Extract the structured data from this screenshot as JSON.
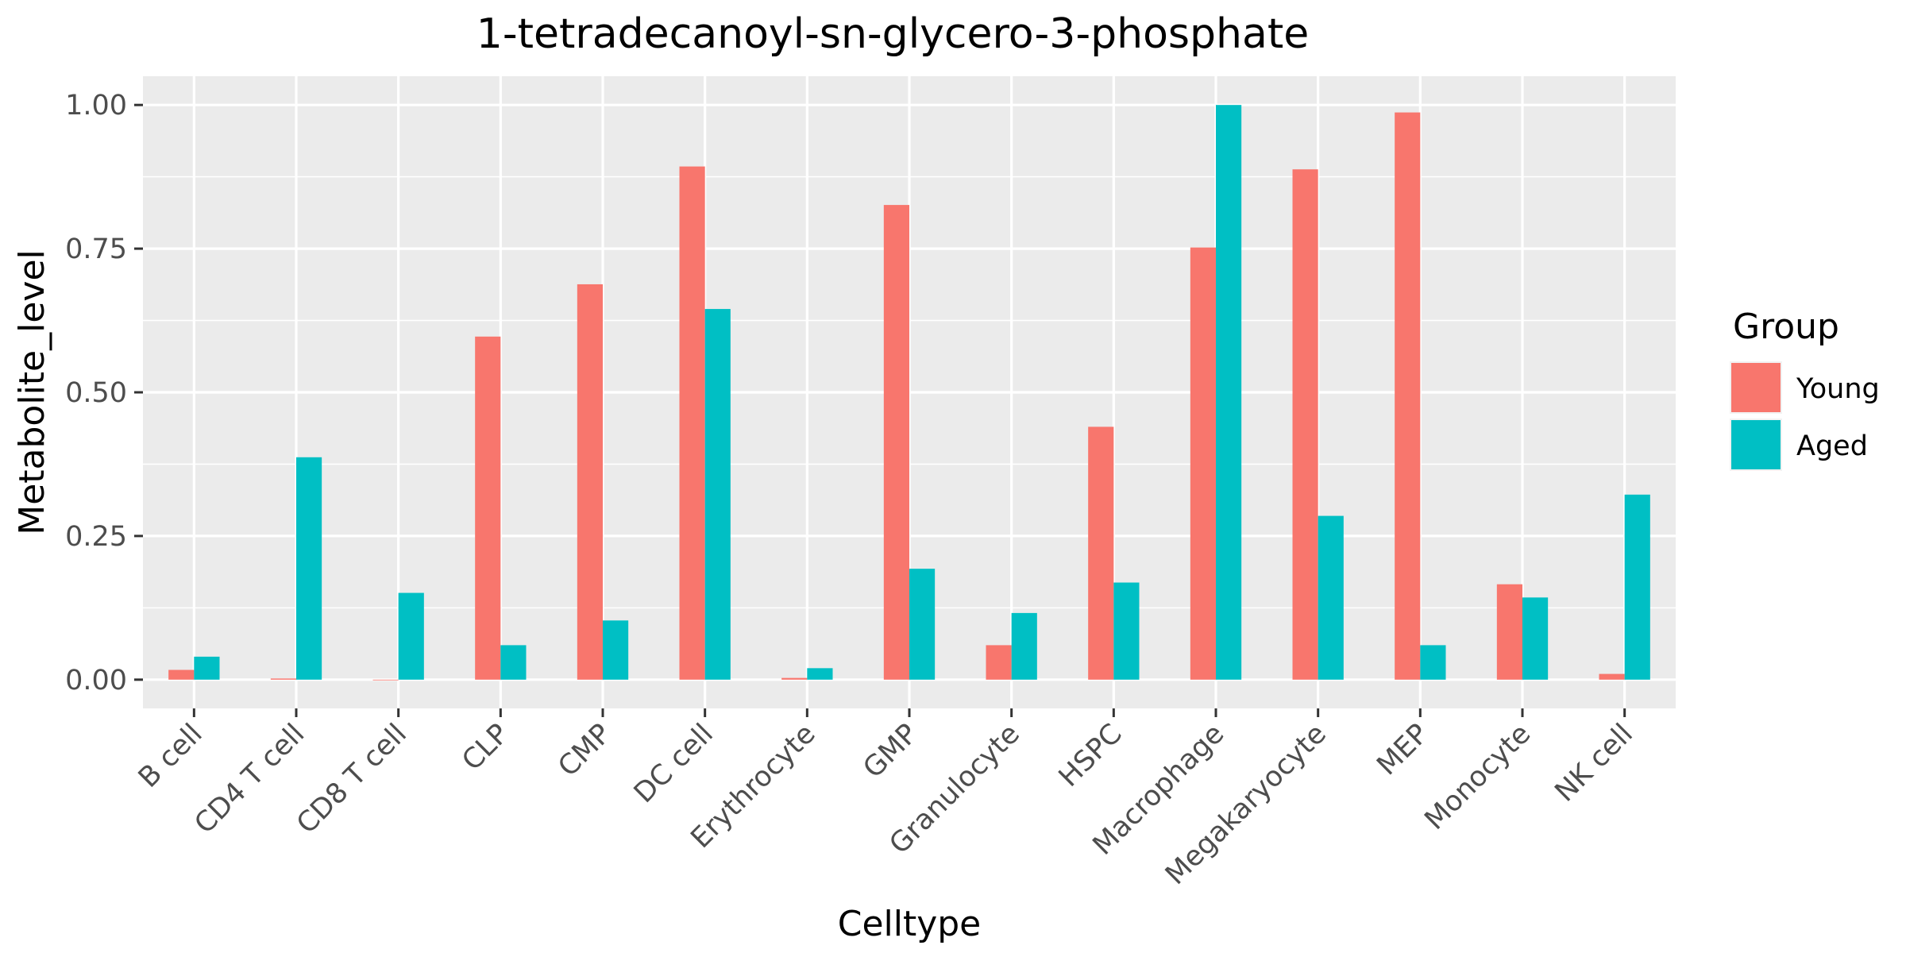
{
  "chart_data": {
    "type": "bar",
    "title": "1-tetradecanoyl-sn-glycero-3-phosphate",
    "xlabel": "Celltype",
    "ylabel": "Metabolite_level",
    "ylim": [
      -0.05,
      1.05
    ],
    "yticks": [
      0.0,
      0.25,
      0.5,
      0.75,
      1.0
    ],
    "ytick_labels": [
      "0.00",
      "0.25",
      "0.50",
      "0.75",
      "1.00"
    ],
    "categories": [
      "B cell",
      "CD4 T cell",
      "CD8 T cell",
      "CLP",
      "CMP",
      "DC cell",
      "Erythrocyte",
      "GMP",
      "Granulocyte",
      "HSPC",
      "Macrophage",
      "Megakaryocyte",
      "MEP",
      "Monocyte",
      "NK cell"
    ],
    "series": [
      {
        "name": "Young",
        "color": "#F8766D",
        "values": [
          0.017,
          0.002,
          0.0,
          0.597,
          0.688,
          0.893,
          0.003,
          0.826,
          0.06,
          0.44,
          0.752,
          0.888,
          0.987,
          0.166,
          0.01
        ]
      },
      {
        "name": "Aged",
        "color": "#00BFC4",
        "values": [
          0.04,
          0.387,
          0.151,
          0.06,
          0.103,
          0.645,
          0.02,
          0.193,
          0.116,
          0.169,
          1.0,
          0.285,
          0.06,
          0.143,
          0.322
        ]
      }
    ],
    "legend": {
      "title": "Group",
      "position": "right"
    },
    "grid": true,
    "panel_background": "#EBEBEB",
    "grid_color": "#FFFFFF"
  }
}
